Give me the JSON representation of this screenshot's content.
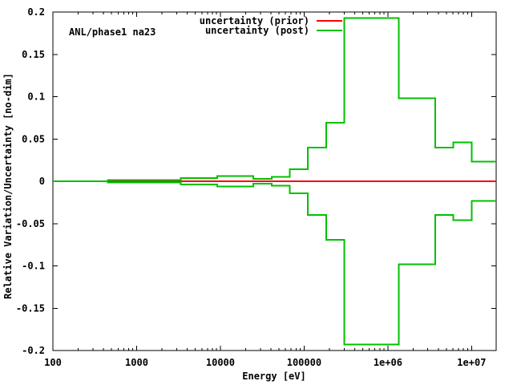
{
  "figure": {
    "background": "#ffffff",
    "annotation": "ANL/phase1 na23"
  },
  "chart_data": {
    "type": "line",
    "title": "",
    "xlabel": "Energy [eV]",
    "ylabel": "Relative Variation/Uncertainty [no-dim]",
    "x_scale": "log",
    "y_scale": "linear",
    "xlim": [
      100,
      19640000
    ],
    "ylim": [
      -0.2,
      0.2
    ],
    "grid": false,
    "legend_position": "top-center-inside",
    "x_ticks": [
      {
        "value": 100,
        "label": "100"
      },
      {
        "value": 1000,
        "label": "1000"
      },
      {
        "value": 10000,
        "label": "10000"
      },
      {
        "value": 100000,
        "label": "100000"
      },
      {
        "value": 1000000,
        "label": "1e+06"
      },
      {
        "value": 10000000,
        "label": "1e+07"
      }
    ],
    "y_ticks": [
      {
        "value": 0.2,
        "label": "0.2"
      },
      {
        "value": 0.15,
        "label": "0.15"
      },
      {
        "value": 0.1,
        "label": "0.1"
      },
      {
        "value": 0.05,
        "label": "0.05"
      },
      {
        "value": 0,
        "label": "0"
      },
      {
        "value": -0.05,
        "label": "-0.05"
      },
      {
        "value": -0.1,
        "label": "-0.1"
      },
      {
        "value": -0.15,
        "label": "-0.15"
      },
      {
        "value": -0.2,
        "label": "-0.2"
      }
    ],
    "series": [
      {
        "name": "uncertainty (prior)",
        "color": "#ff0000",
        "style": "constant-line",
        "value": 0.0
      },
      {
        "name": "uncertainty (post)",
        "color": "#00c000",
        "style": "mirrored-steps",
        "energy_bounds_eV": [
          100,
          454,
          3354.6,
          9118.8,
          24788,
          40868,
          67379,
          111090,
          183160,
          301970,
          1353400,
          3678800,
          6065300,
          10000000,
          19640000
        ],
        "values": [
          0.0,
          0.0015,
          0.004,
          0.006,
          0.003,
          0.005,
          0.014,
          0.04,
          0.069,
          0.193,
          0.098,
          0.04,
          0.046,
          0.023
        ]
      }
    ]
  }
}
